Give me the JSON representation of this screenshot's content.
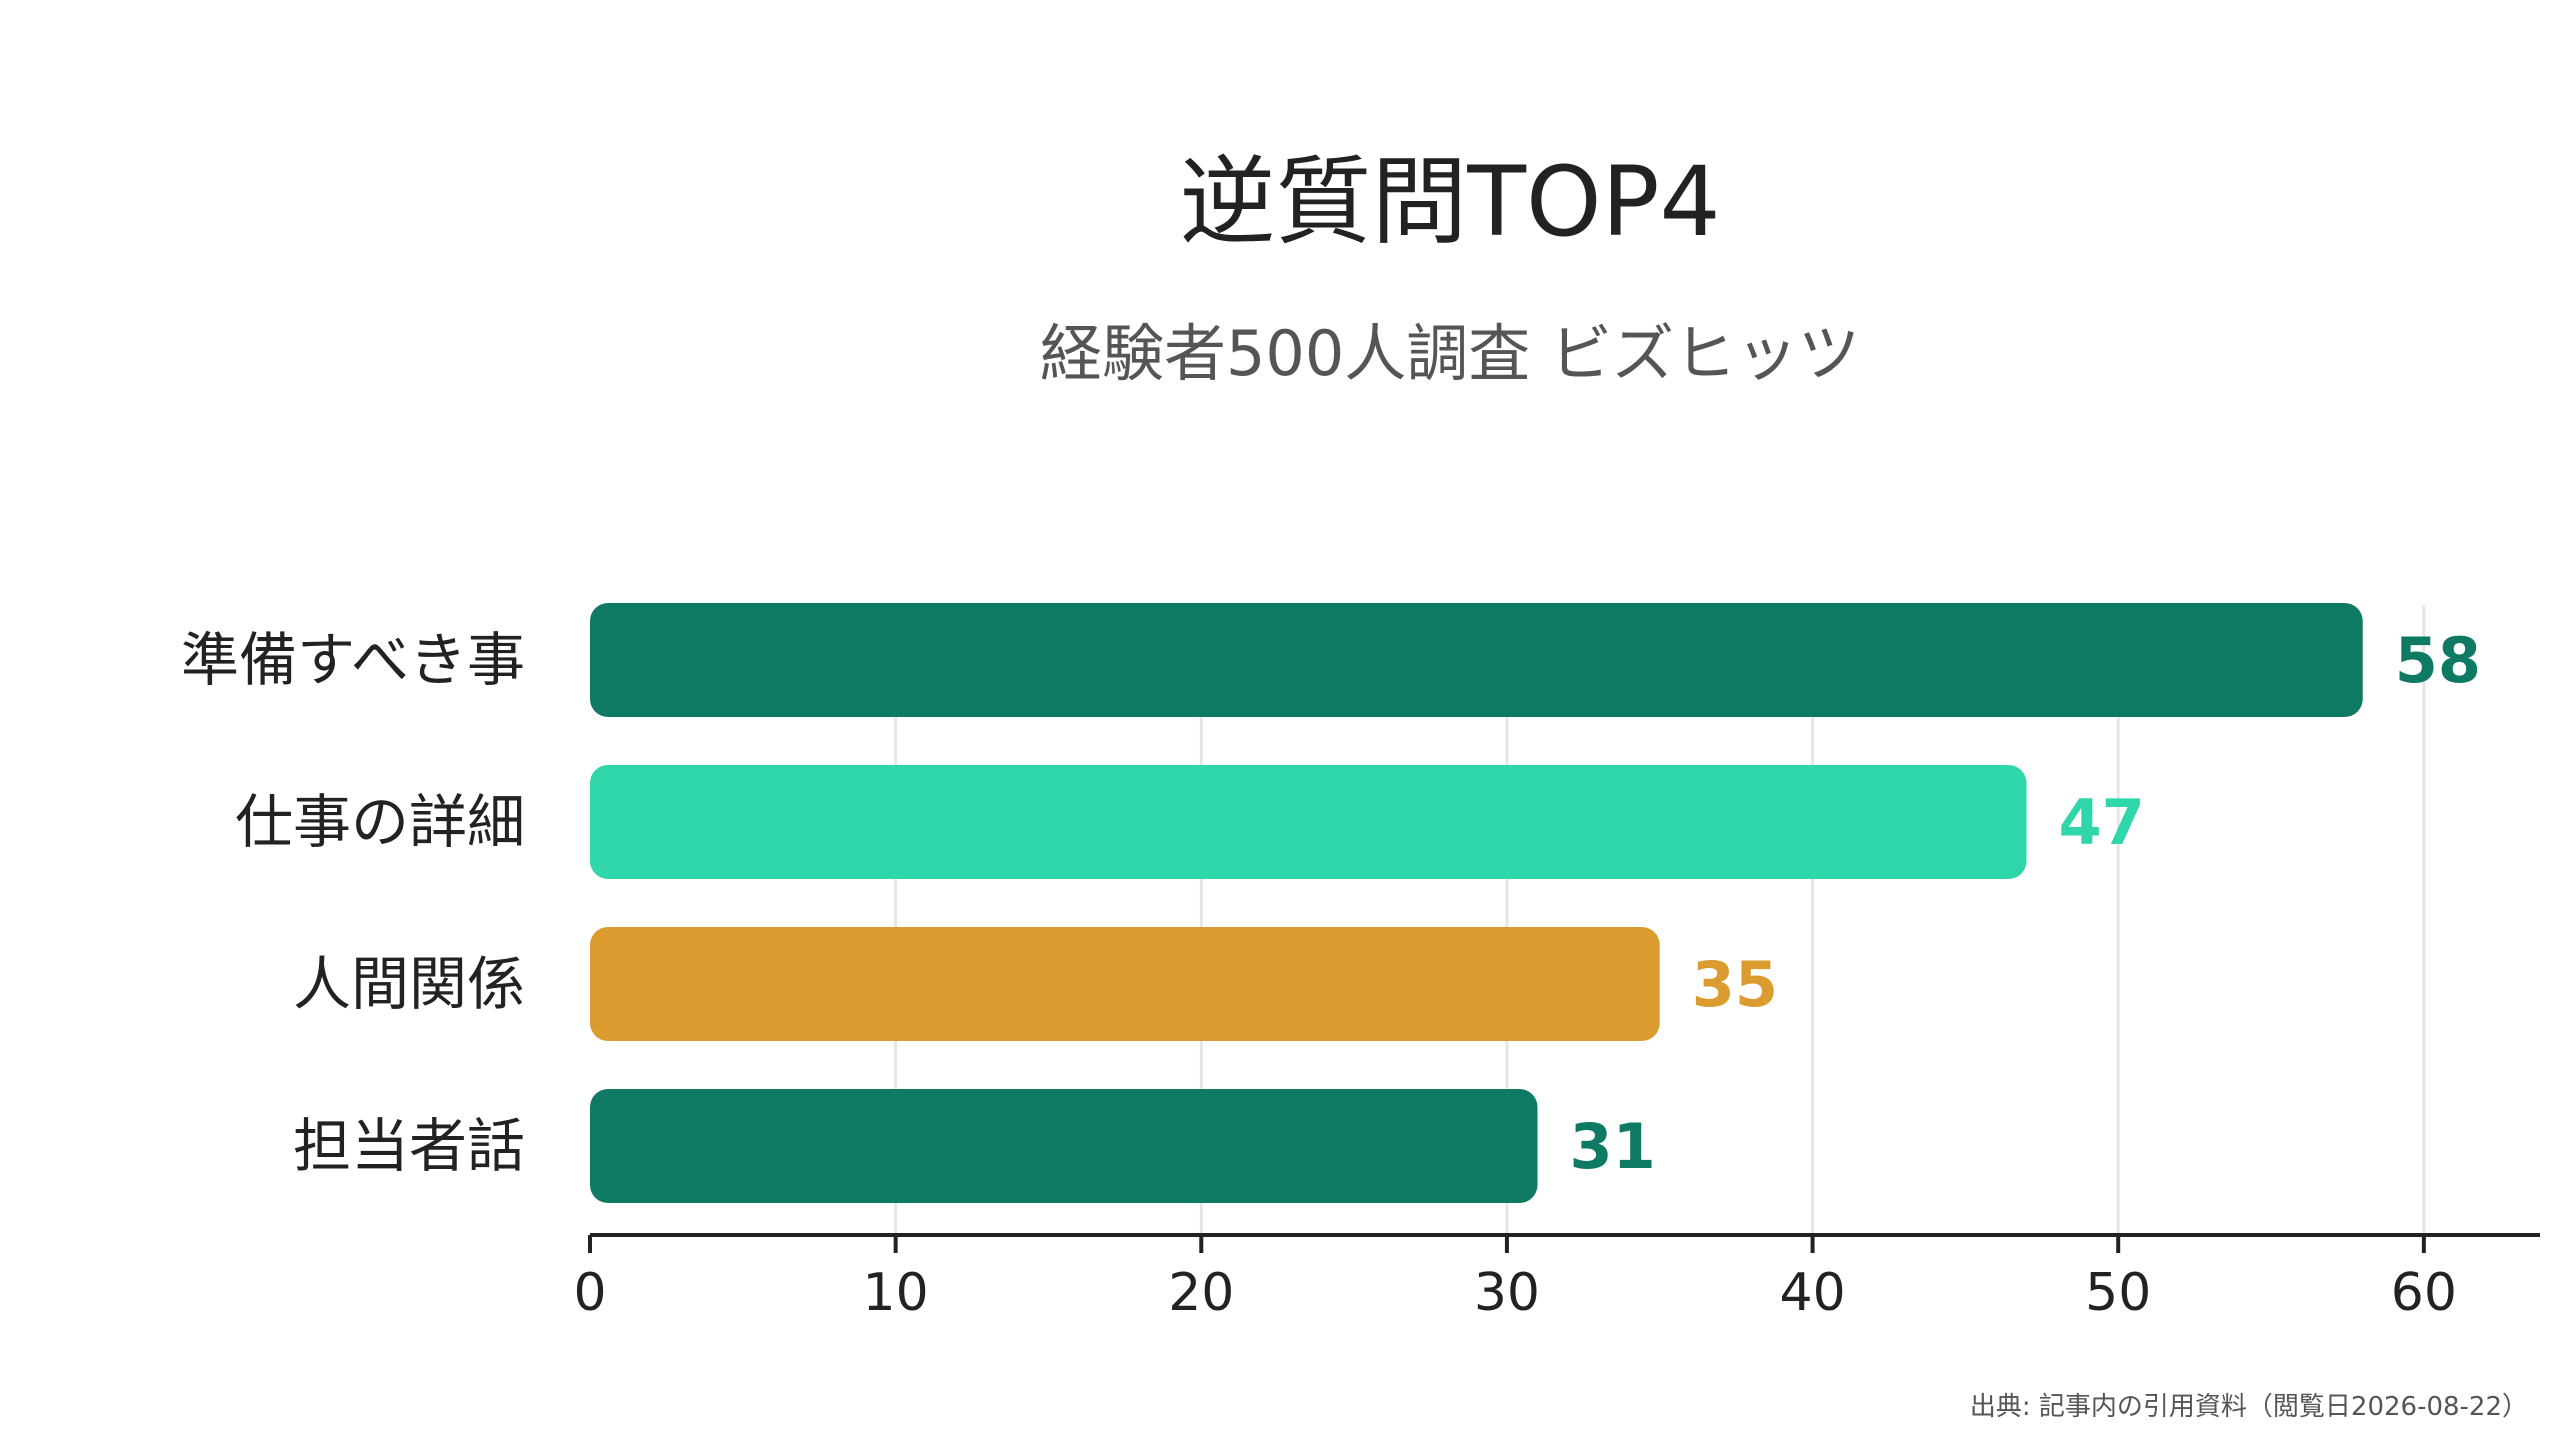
{
  "chart_data": {
    "type": "bar",
    "orientation": "horizontal",
    "title": "逆質問TOP4",
    "subtitle": "経験者500人調査 ビズヒッツ",
    "categories": [
      "準備すべき事",
      "仕事の詳細",
      "人間関係",
      "担当者話"
    ],
    "values": [
      58,
      47,
      35,
      31
    ],
    "value_labels": [
      "58",
      "47",
      "35",
      "31"
    ],
    "bar_colors": [
      "#0f7a64",
      "#2ed6a9",
      "#db9b2e",
      "#0f7a64"
    ],
    "xlim": [
      0,
      63.8
    ],
    "xticks": [
      0,
      10,
      20,
      30,
      40,
      50,
      60
    ],
    "xtick_labels": [
      "0",
      "10",
      "20",
      "30",
      "40",
      "50",
      "60"
    ],
    "xlabel": "",
    "ylabel": "",
    "grid": "vertical",
    "legend": "none",
    "source": "出典: 記事内の引用資料（閲覧日2026-08-22）"
  },
  "colors": {
    "background": "#ffffff",
    "gridline": "#e6e6e6",
    "axis": "#222222"
  }
}
